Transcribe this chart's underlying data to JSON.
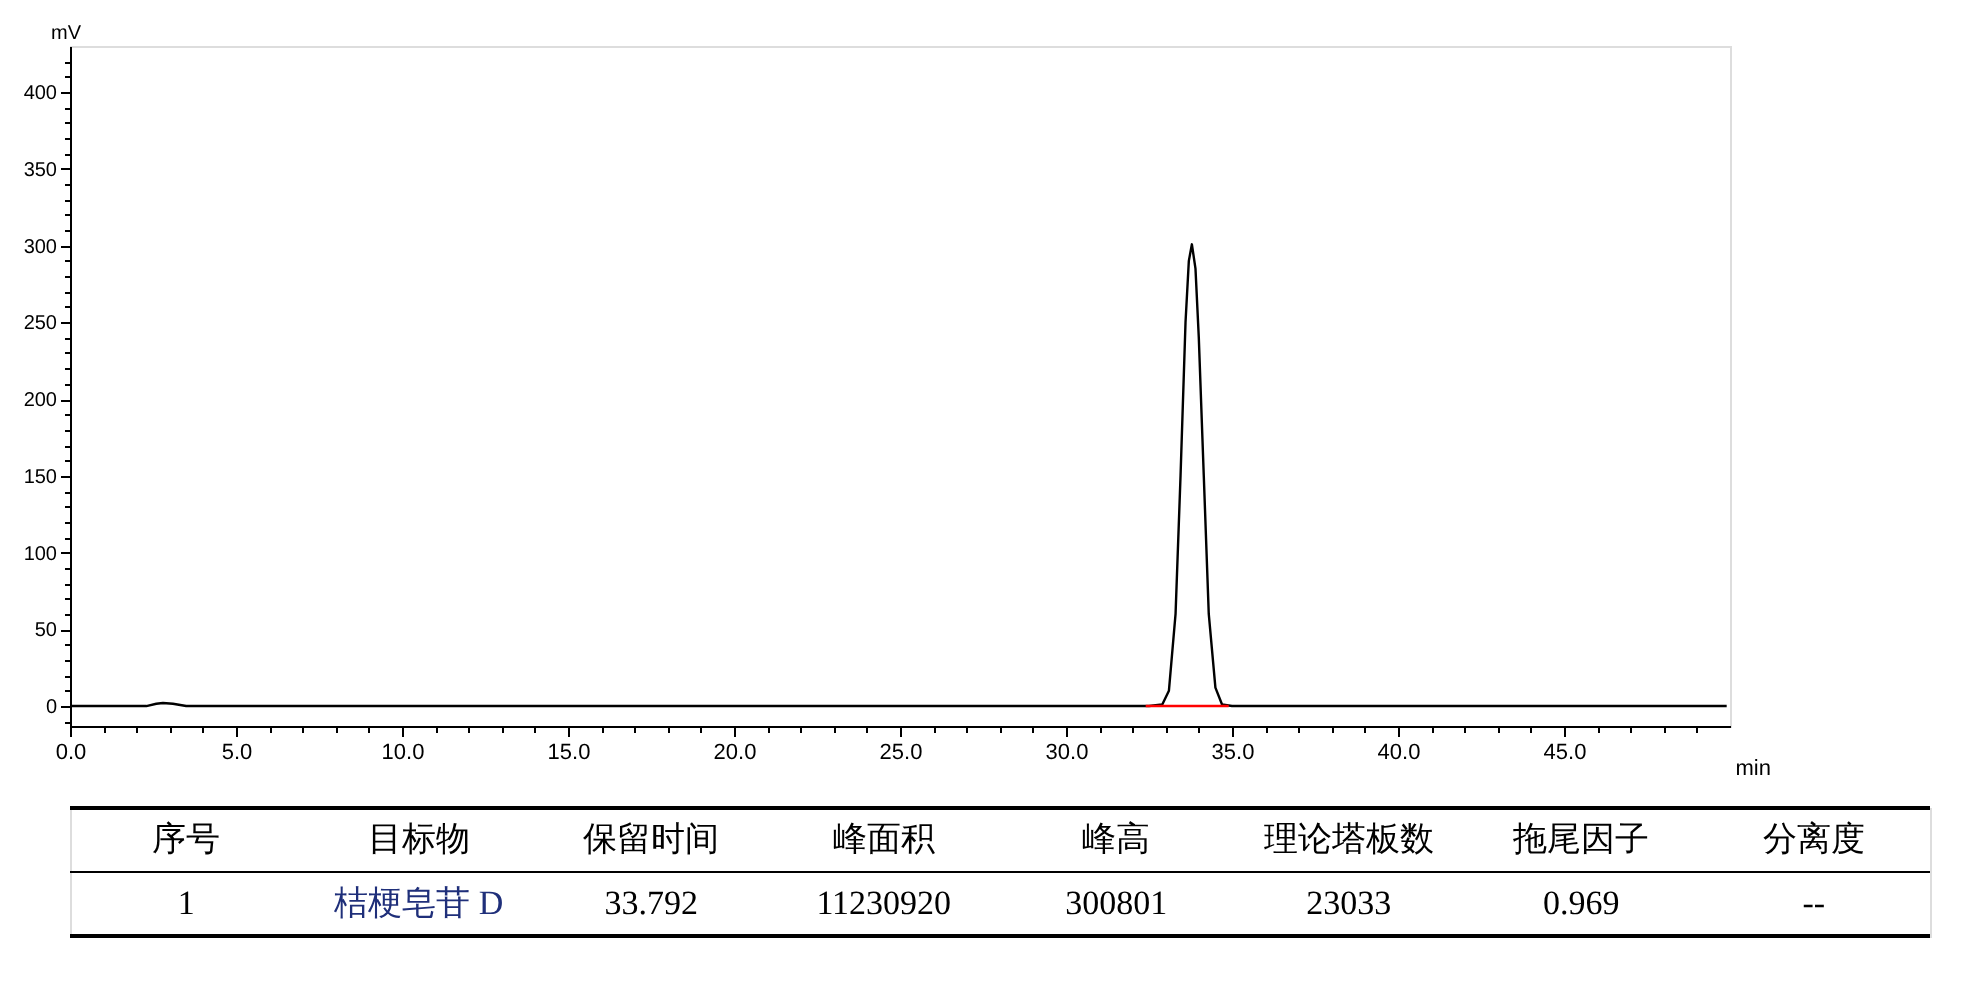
{
  "chart_data": {
    "type": "line",
    "xlabel": "min",
    "ylabel": "mV",
    "xlim": [
      0,
      50
    ],
    "ylim": [
      -13,
      430
    ],
    "xticks": [
      {
        "value": 0,
        "label": "0.0"
      },
      {
        "value": 1,
        "label": null
      },
      {
        "value": 2,
        "label": null
      },
      {
        "value": 3,
        "label": null
      },
      {
        "value": 4,
        "label": null
      },
      {
        "value": 5,
        "label": "5.0"
      },
      {
        "value": 6,
        "label": null
      },
      {
        "value": 7,
        "label": null
      },
      {
        "value": 8,
        "label": null
      },
      {
        "value": 9,
        "label": null
      },
      {
        "value": 10,
        "label": "10.0"
      },
      {
        "value": 11,
        "label": null
      },
      {
        "value": 12,
        "label": null
      },
      {
        "value": 13,
        "label": null
      },
      {
        "value": 14,
        "label": null
      },
      {
        "value": 15,
        "label": "15.0"
      },
      {
        "value": 16,
        "label": null
      },
      {
        "value": 17,
        "label": null
      },
      {
        "value": 18,
        "label": null
      },
      {
        "value": 19,
        "label": null
      },
      {
        "value": 20,
        "label": "20.0"
      },
      {
        "value": 21,
        "label": null
      },
      {
        "value": 22,
        "label": null
      },
      {
        "value": 23,
        "label": null
      },
      {
        "value": 24,
        "label": null
      },
      {
        "value": 25,
        "label": "25.0"
      },
      {
        "value": 26,
        "label": null
      },
      {
        "value": 27,
        "label": null
      },
      {
        "value": 28,
        "label": null
      },
      {
        "value": 29,
        "label": null
      },
      {
        "value": 30,
        "label": "30.0"
      },
      {
        "value": 31,
        "label": null
      },
      {
        "value": 32,
        "label": null
      },
      {
        "value": 33,
        "label": null
      },
      {
        "value": 34,
        "label": null
      },
      {
        "value": 35,
        "label": "35.0"
      },
      {
        "value": 36,
        "label": null
      },
      {
        "value": 37,
        "label": null
      },
      {
        "value": 38,
        "label": null
      },
      {
        "value": 39,
        "label": null
      },
      {
        "value": 40,
        "label": "40.0"
      },
      {
        "value": 41,
        "label": null
      },
      {
        "value": 42,
        "label": null
      },
      {
        "value": 43,
        "label": null
      },
      {
        "value": 44,
        "label": null
      },
      {
        "value": 45,
        "label": "45.0"
      },
      {
        "value": 46,
        "label": null
      },
      {
        "value": 47,
        "label": null
      },
      {
        "value": 48,
        "label": null
      },
      {
        "value": 49,
        "label": null
      }
    ],
    "yticks": [
      {
        "value": -10,
        "label": null
      },
      0,
      {
        "value": 10,
        "label": null
      },
      {
        "value": 20,
        "label": null
      },
      {
        "value": 30,
        "label": null
      },
      {
        "value": 40,
        "label": null
      },
      50,
      {
        "value": 60,
        "label": null
      },
      {
        "value": 70,
        "label": null
      },
      {
        "value": 80,
        "label": null
      },
      {
        "value": 90,
        "label": null
      },
      100,
      {
        "value": 110,
        "label": null
      },
      {
        "value": 120,
        "label": null
      },
      {
        "value": 130,
        "label": null
      },
      {
        "value": 140,
        "label": null
      },
      150,
      {
        "value": 160,
        "label": null
      },
      {
        "value": 170,
        "label": null
      },
      {
        "value": 180,
        "label": null
      },
      {
        "value": 190,
        "label": null
      },
      200,
      {
        "value": 210,
        "label": null
      },
      {
        "value": 220,
        "label": null
      },
      {
        "value": 230,
        "label": null
      },
      {
        "value": 240,
        "label": null
      },
      250,
      {
        "value": 260,
        "label": null
      },
      {
        "value": 270,
        "label": null
      },
      {
        "value": 280,
        "label": null
      },
      {
        "value": 290,
        "label": null
      },
      300,
      {
        "value": 310,
        "label": null
      },
      {
        "value": 320,
        "label": null
      },
      {
        "value": 330,
        "label": null
      },
      {
        "value": 340,
        "label": null
      },
      350,
      {
        "value": 360,
        "label": null
      },
      {
        "value": 370,
        "label": null
      },
      {
        "value": 380,
        "label": null
      },
      {
        "value": 390,
        "label": null
      },
      400,
      {
        "value": 410,
        "label": null
      },
      {
        "value": 420,
        "label": null
      }
    ],
    "grid": false,
    "series": [
      {
        "color": "#000000",
        "x": [
          0,
          2.3,
          2.6,
          2.8,
          3.1,
          3.5,
          32.5,
          32.9,
          33.1,
          33.3,
          33.45,
          33.6,
          33.7,
          33.792,
          33.9,
          34.0,
          34.15,
          34.3,
          34.5,
          34.7,
          35.0,
          49.9
        ],
        "values": [
          0,
          0,
          1.5,
          2,
          1.5,
          0,
          0,
          1,
          10,
          60,
          150,
          250,
          290,
          300.8,
          285,
          240,
          150,
          60,
          12,
          1,
          0,
          0
        ]
      },
      {
        "color": "#ff0000",
        "x": [
          32.4,
          34.9
        ],
        "values": [
          0,
          0
        ]
      }
    ],
    "annotations": [
      "序号",
      "目标物",
      "保留时间",
      "峰面积",
      "峰高",
      "理论塔板数",
      "拖尾因子",
      "分离度",
      "1",
      "桔梗皂苷 D",
      "33.792",
      "11230920",
      "300801",
      "23033",
      "0.969",
      "--"
    ]
  }
}
